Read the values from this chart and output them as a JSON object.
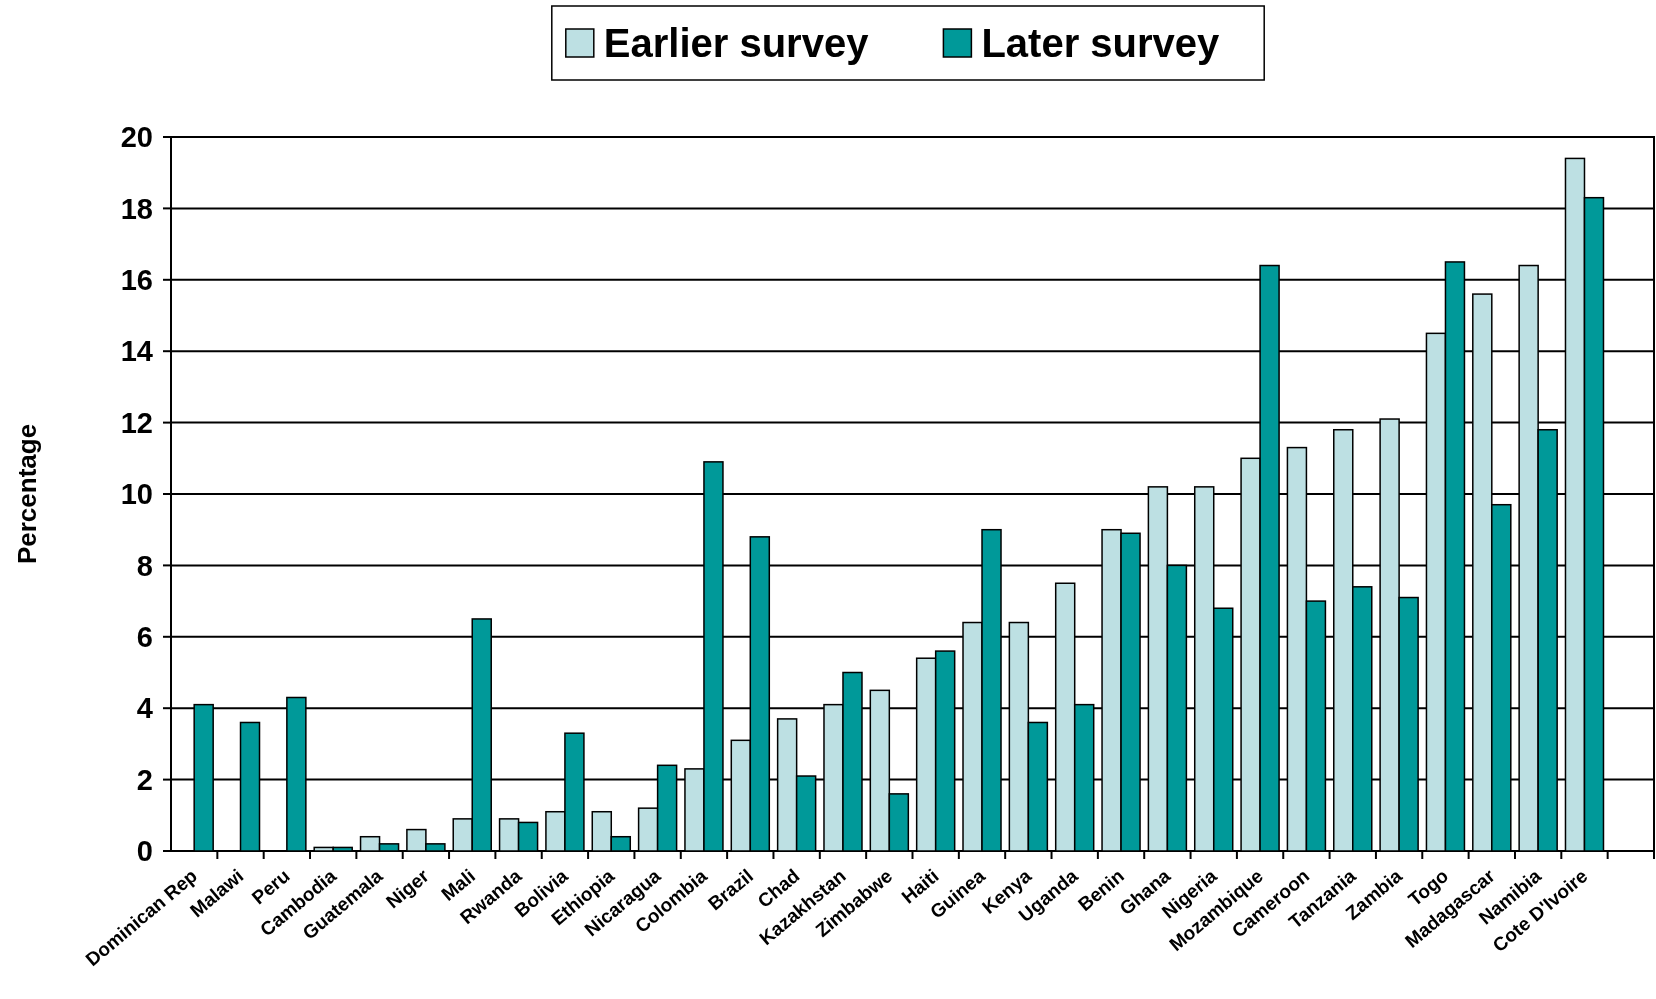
{
  "chart_data": {
    "type": "bar",
    "ylabel": "Percentage",
    "categories": [
      "Dominican Rep",
      "Malawi",
      "Peru",
      "Cambodia",
      "Guatemala",
      "Niger",
      "Mali",
      "Rwanda",
      "Bolivia",
      "Ethiopia",
      "Nicaragua",
      "Colombia",
      "Brazil",
      "Chad",
      "Kazakhstan",
      "Zimbabwe",
      "Haiti",
      "Guinea",
      "Kenya",
      "Uganda",
      "Benin",
      "Ghana",
      "Nigeria",
      "Mozambique",
      "Cameroon",
      "Tanzania",
      "Zambia",
      "Togo",
      "Madagascar",
      "Namibia",
      "Cote D'Ivoire",
      null
    ],
    "series": [
      {
        "name": "Earlier survey",
        "color": "#bde0e3",
        "values": [
          null,
          null,
          null,
          0.1,
          0.4,
          0.6,
          0.9,
          0.9,
          1.1,
          1.1,
          1.2,
          2.3,
          3.1,
          3.7,
          4.1,
          4.5,
          5.4,
          6.4,
          6.4,
          7.5,
          9.0,
          10.2,
          10.2,
          11.0,
          11.3,
          11.8,
          12.1,
          14.5,
          15.6,
          16.4,
          19.4,
          null
        ]
      },
      {
        "name": "Later survey",
        "color": "#009999",
        "values": [
          4.1,
          3.6,
          4.3,
          0.1,
          0.2,
          0.2,
          6.5,
          0.8,
          3.3,
          0.4,
          2.4,
          10.9,
          8.8,
          2.1,
          5.0,
          1.6,
          5.6,
          9.0,
          3.6,
          4.1,
          8.9,
          8.0,
          6.8,
          16.4,
          7.0,
          7.4,
          7.1,
          16.5,
          9.7,
          11.8,
          18.3,
          null
        ]
      }
    ],
    "ylim": [
      0,
      20
    ],
    "yticks": [
      0,
      2,
      4,
      6,
      8,
      10,
      12,
      14,
      16,
      18,
      20
    ],
    "grid": "y",
    "legend": "top"
  }
}
